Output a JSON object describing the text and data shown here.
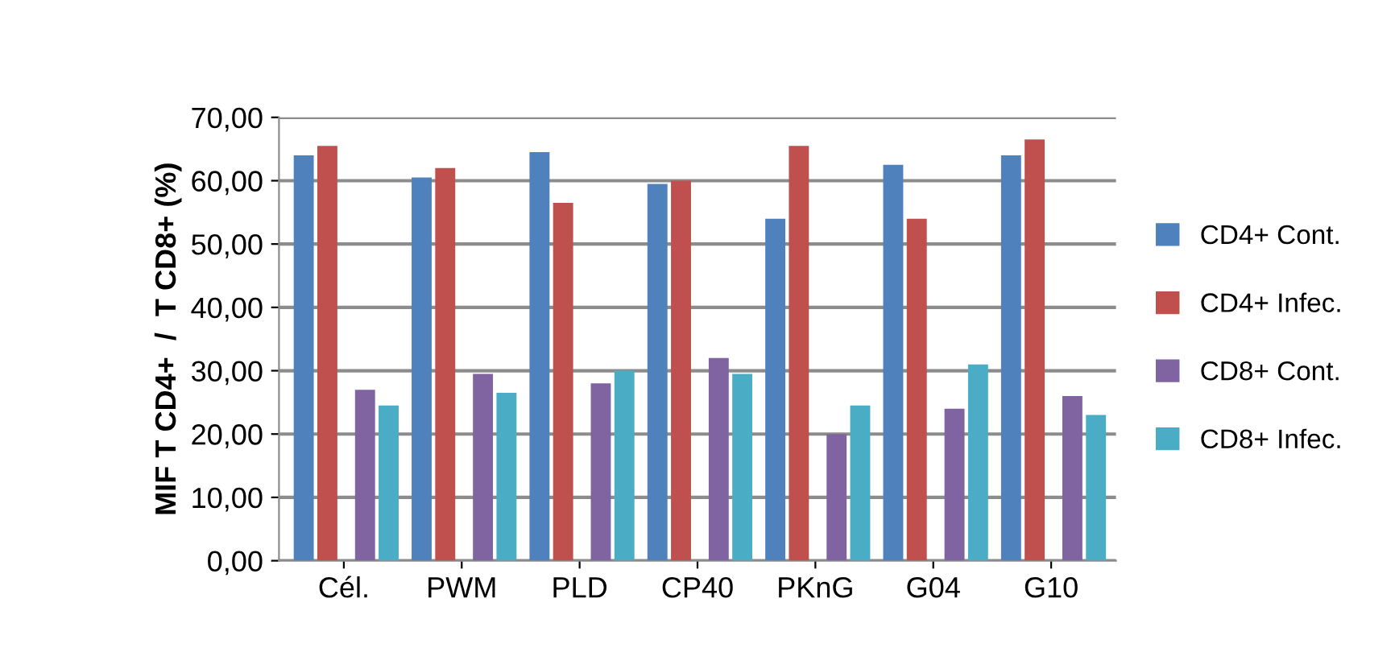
{
  "chart_data": {
    "type": "bar",
    "ylabel": "MIF T CD4+  /  T CD8+ (%)",
    "categories": [
      "Cél.",
      "PWM",
      "PLD",
      "CP40",
      "PKnG",
      "G04",
      "G10"
    ],
    "series": [
      {
        "name": "CD4+ Cont.",
        "color": "#4f81bd",
        "values": [
          64,
          60.5,
          64.5,
          59.5,
          54,
          62.5,
          64
        ]
      },
      {
        "name": "CD4+ Infec.",
        "color": "#c0504d",
        "values": [
          65.5,
          62,
          56.5,
          60,
          65.5,
          54,
          66.5
        ]
      },
      {
        "name": "CD8+ Cont.",
        "color": "#8064a2",
        "values": [
          27,
          29.5,
          28,
          32,
          20,
          24,
          26
        ]
      },
      {
        "name": "CD8+ Infec.",
        "color": "#4bacc6",
        "values": [
          24.5,
          26.5,
          30,
          29.5,
          24.5,
          31,
          23
        ]
      }
    ],
    "ylim": [
      0,
      70
    ],
    "yticks": [
      {
        "value": 0,
        "label": "0,00"
      },
      {
        "value": 10,
        "label": "10,00"
      },
      {
        "value": 20,
        "label": "20,00"
      },
      {
        "value": 30,
        "label": "30,00"
      },
      {
        "value": 40,
        "label": "40,00"
      },
      {
        "value": 50,
        "label": "50,00"
      },
      {
        "value": 60,
        "label": "60,00"
      },
      {
        "value": 70,
        "label": "70,00"
      }
    ],
    "grid": "y",
    "legend": "right"
  }
}
